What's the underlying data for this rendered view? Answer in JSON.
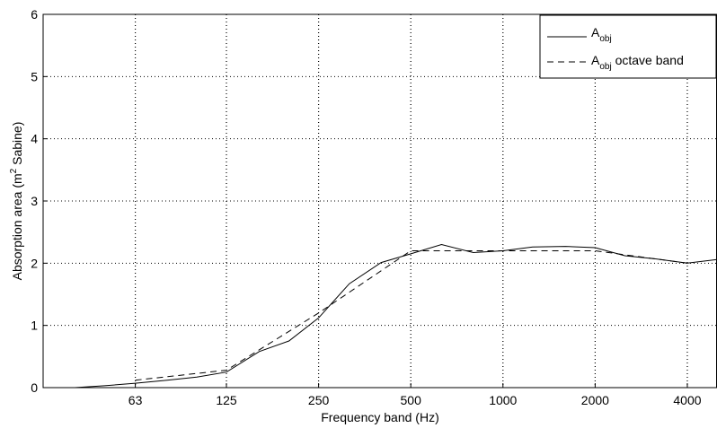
{
  "chart_data": {
    "type": "line",
    "xlabel": "Frequency band (Hz)",
    "ylabel": {
      "prefix": "Absorption area (m",
      "superscript": "2",
      "suffix": " Sabine)"
    },
    "ylim": [
      0,
      6
    ],
    "yticks": [
      0,
      1,
      2,
      3,
      4,
      5,
      6
    ],
    "xlim": [
      31.5,
      5000
    ],
    "xscale": "log2",
    "xticks": [
      63,
      125,
      250,
      500,
      1000,
      2000,
      4000
    ],
    "xtick_labels": [
      "63",
      "125",
      "250",
      "500",
      "1000",
      "2000",
      "4000"
    ],
    "grid": "dotted",
    "legend_position": "top-right",
    "series": [
      {
        "name": "A",
        "name_subscript": "obj",
        "style": "solid",
        "x": [
          40,
          50,
          63,
          80,
          100,
          125,
          160,
          200,
          250,
          315,
          400,
          500,
          630,
          800,
          1000,
          1250,
          1600,
          2000,
          2500,
          3150,
          4000,
          5000
        ],
        "y": [
          0.0,
          0.03,
          0.07,
          0.12,
          0.17,
          0.25,
          0.58,
          0.75,
          1.12,
          1.67,
          2.01,
          2.15,
          2.3,
          2.17,
          2.2,
          2.26,
          2.27,
          2.25,
          2.12,
          2.07,
          2.0,
          2.06
        ]
      },
      {
        "name": "A",
        "name_subscript": "obj",
        "name_suffix": " octave band",
        "style": "dashed",
        "x": [
          63,
          125,
          250,
          500,
          1000,
          2000,
          4000
        ],
        "y": [
          0.12,
          0.28,
          1.2,
          2.2,
          2.2,
          2.2,
          2.0
        ]
      }
    ]
  }
}
